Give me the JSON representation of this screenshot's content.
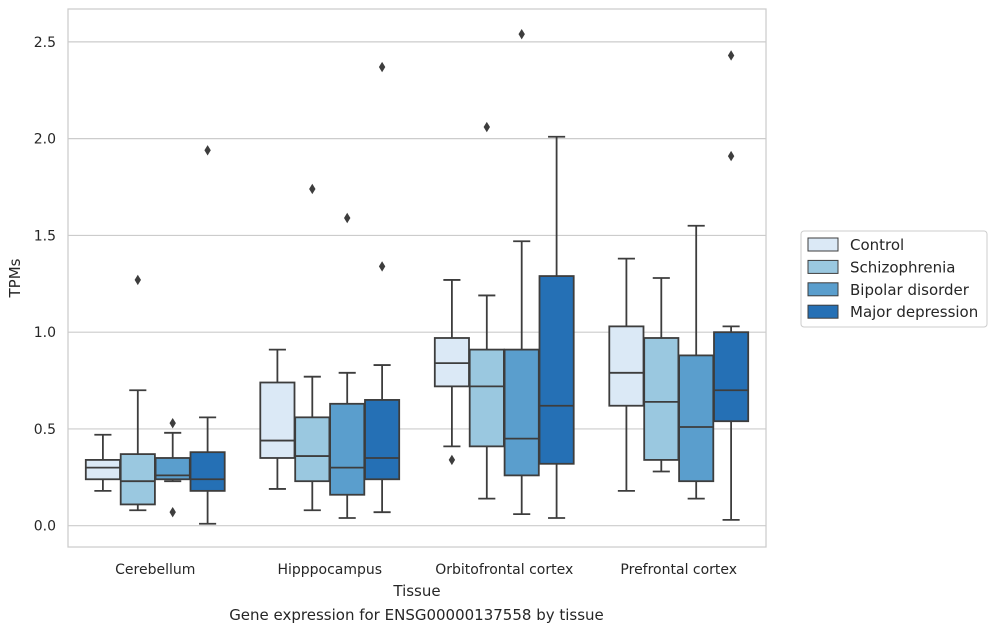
{
  "caption": "Gene expression for ENSG00000137558 by tissue",
  "chart_data": {
    "type": "box",
    "xlabel": "Tissue",
    "ylabel": "TPMs",
    "ylim": [
      -0.11,
      2.67
    ],
    "yticks": [
      0.0,
      0.5,
      1.0,
      1.5,
      2.0,
      2.5
    ],
    "ytick_labels": [
      "0.0",
      "0.5",
      "1.0",
      "1.5",
      "2.0",
      "2.5"
    ],
    "grid": true,
    "legend_position": "right",
    "categories": [
      "Cerebellum",
      "Hipppocampus",
      "Orbitofrontal cortex",
      "Prefrontal cortex"
    ],
    "series": [
      {
        "name": "Control",
        "color": "#dbe9f6",
        "boxes": [
          {
            "whislo": 0.18,
            "q1": 0.24,
            "med": 0.3,
            "q3": 0.34,
            "whishi": 0.47,
            "fliers": []
          },
          {
            "whislo": 0.19,
            "q1": 0.35,
            "med": 0.44,
            "q3": 0.74,
            "whishi": 0.91,
            "fliers": []
          },
          {
            "whislo": 0.41,
            "q1": 0.72,
            "med": 0.84,
            "q3": 0.97,
            "whishi": 1.27,
            "fliers": [
              0.34
            ]
          },
          {
            "whislo": 0.18,
            "q1": 0.62,
            "med": 0.79,
            "q3": 1.03,
            "whishi": 1.38,
            "fliers": []
          }
        ]
      },
      {
        "name": "Schizophrenia",
        "color": "#9ac8e0",
        "boxes": [
          {
            "whislo": 0.08,
            "q1": 0.11,
            "med": 0.23,
            "q3": 0.37,
            "whishi": 0.7,
            "fliers": [
              1.27
            ]
          },
          {
            "whislo": 0.08,
            "q1": 0.23,
            "med": 0.36,
            "q3": 0.56,
            "whishi": 0.77,
            "fliers": [
              1.74
            ]
          },
          {
            "whislo": 0.14,
            "q1": 0.41,
            "med": 0.72,
            "q3": 0.91,
            "whishi": 1.19,
            "fliers": [
              2.06
            ]
          },
          {
            "whislo": 0.28,
            "q1": 0.34,
            "med": 0.64,
            "q3": 0.97,
            "whishi": 1.28,
            "fliers": []
          }
        ]
      },
      {
        "name": "Bipolar disorder",
        "color": "#5a9ecd",
        "boxes": [
          {
            "whislo": 0.23,
            "q1": 0.24,
            "med": 0.26,
            "q3": 0.35,
            "whishi": 0.48,
            "fliers": [
              0.53,
              0.07
            ]
          },
          {
            "whislo": 0.04,
            "q1": 0.16,
            "med": 0.3,
            "q3": 0.63,
            "whishi": 0.79,
            "fliers": [
              1.59
            ]
          },
          {
            "whislo": 0.06,
            "q1": 0.26,
            "med": 0.45,
            "q3": 0.91,
            "whishi": 1.47,
            "fliers": [
              2.54
            ]
          },
          {
            "whislo": 0.14,
            "q1": 0.23,
            "med": 0.51,
            "q3": 0.88,
            "whishi": 1.55,
            "fliers": []
          }
        ]
      },
      {
        "name": "Major depression",
        "color": "#2570b5",
        "boxes": [
          {
            "whislo": 0.01,
            "q1": 0.18,
            "med": 0.24,
            "q3": 0.38,
            "whishi": 0.56,
            "fliers": [
              1.94
            ]
          },
          {
            "whislo": 0.07,
            "q1": 0.24,
            "med": 0.35,
            "q3": 0.65,
            "whishi": 0.83,
            "fliers": [
              2.37,
              1.34
            ]
          },
          {
            "whislo": 0.04,
            "q1": 0.32,
            "med": 0.62,
            "q3": 1.29,
            "whishi": 2.01,
            "fliers": []
          },
          {
            "whislo": 0.03,
            "q1": 0.54,
            "med": 0.7,
            "q3": 1.0,
            "whishi": 1.03,
            "fliers": [
              2.43,
              1.91
            ]
          }
        ]
      }
    ]
  }
}
